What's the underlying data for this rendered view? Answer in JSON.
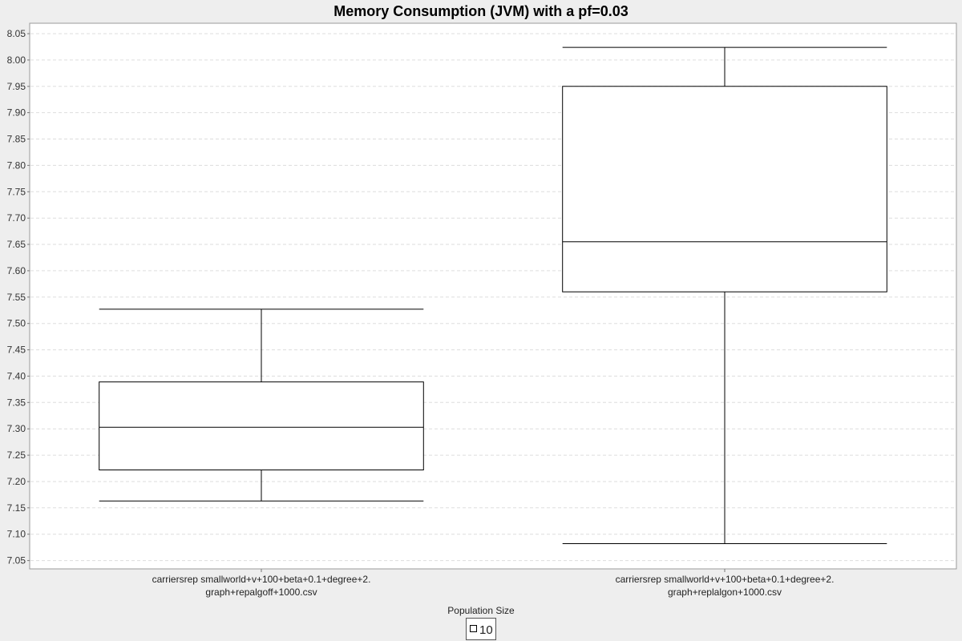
{
  "chart_data": {
    "type": "box",
    "title": "Memory Consumption (JVM) with a pf=0.03",
    "xlabel": "",
    "ylabel": "",
    "ylim": [
      7.03,
      8.07
    ],
    "y_ticks": [
      7.05,
      7.1,
      7.15,
      7.2,
      7.25,
      7.3,
      7.35,
      7.4,
      7.45,
      7.5,
      7.55,
      7.6,
      7.65,
      7.7,
      7.75,
      7.8,
      7.85,
      7.9,
      7.95,
      8.0,
      8.05
    ],
    "grid": true,
    "categories": [
      [
        "carriersrep smallworld+v+100+beta+0.1+degree+2.",
        "graph+repalgoff+1000.csv"
      ],
      [
        "carriersrep smallworld+v+100+beta+0.1+degree+2.",
        "graph+replalgon+1000.csv"
      ]
    ],
    "series": [
      {
        "name": "10",
        "boxes": [
          {
            "min": 7.163,
            "q1": 7.222,
            "median": 7.303,
            "q3": 7.389,
            "max": 7.527
          },
          {
            "min": 7.082,
            "q1": 7.56,
            "median": 7.655,
            "q3": 7.95,
            "max": 8.024
          }
        ]
      }
    ],
    "legend": {
      "title": "Population Size",
      "position": "bottom",
      "items": [
        {
          "label": "10",
          "color": "#ffffff"
        }
      ]
    },
    "colors": {
      "plot_background": "#ffffff",
      "page_background": "#eeeeee",
      "grid": "#dddddd",
      "box_fill": "#ffffff",
      "stroke": "#000000"
    }
  }
}
